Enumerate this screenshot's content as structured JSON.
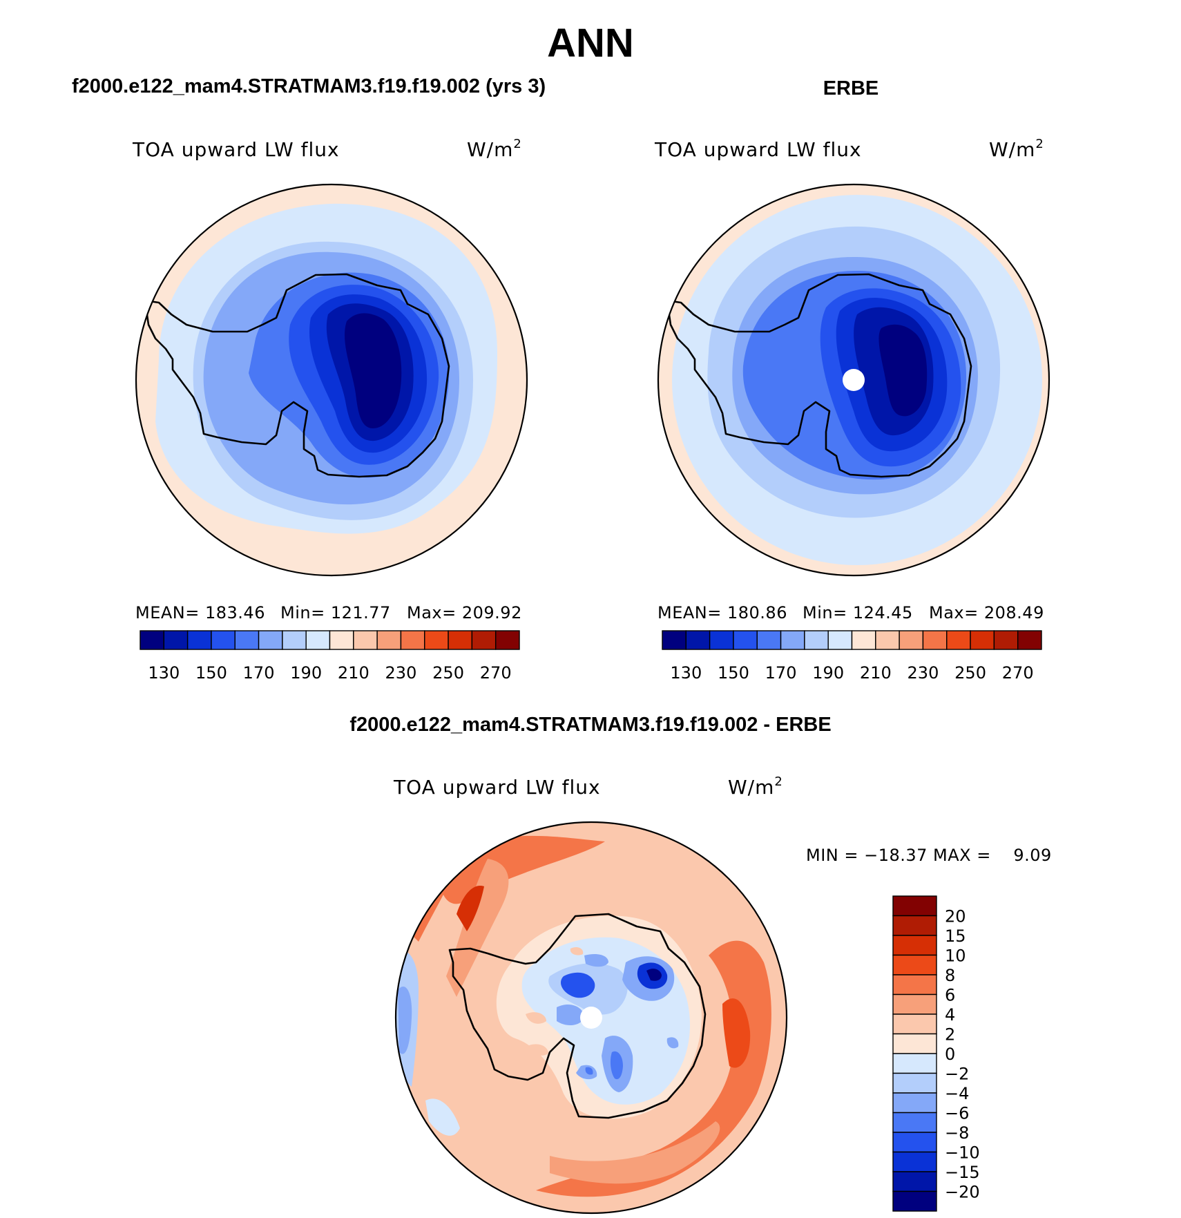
{
  "figure": {
    "season": "ANN",
    "units_suffix": "W/m",
    "units_power": "2"
  },
  "maps": [
    {
      "id": "model",
      "title": "f2000.e122_mam4.STRATMAM3.f19.f19.002 (yrs 3)",
      "field": "TOA upward LW flux",
      "mean_label": "MEAN= 183.46",
      "min_label": "Min= 121.77",
      "max_label": "Max= 209.92",
      "stats": {
        "mean": 183.46,
        "min": 121.77,
        "max": 209.92
      },
      "pole_hole": false
    },
    {
      "id": "obs",
      "title": "ERBE",
      "field": "TOA upward LW flux",
      "mean_label": "MEAN= 180.86",
      "min_label": "Min= 124.45",
      "max_label": "Max= 208.49",
      "stats": {
        "mean": 180.86,
        "min": 124.45,
        "max": 208.49
      },
      "pole_hole": true
    },
    {
      "id": "diff",
      "title": "f2000.e122_mam4.STRATMAM3.f19.f19.002 - ERBE",
      "field": "TOA upward LW flux",
      "minmax_label": "MIN = −18.37 MAX =    9.09",
      "stats": {
        "min": -18.37,
        "max": 9.09
      },
      "pole_hole": true
    }
  ],
  "colorbar_abs": {
    "levels": [
      130,
      140,
      150,
      160,
      170,
      180,
      190,
      200,
      210,
      220,
      230,
      240,
      250,
      260,
      270
    ],
    "tick_labels": [
      "130",
      "150",
      "170",
      "190",
      "210",
      "230",
      "250",
      "270"
    ],
    "colors": [
      "#00007f",
      "#0016a9",
      "#0a32d6",
      "#2452ee",
      "#4a78f5",
      "#84a8f8",
      "#b3cefb",
      "#d6e8fd",
      "#fde6d6",
      "#fbc8ad",
      "#f7a07a",
      "#f47548",
      "#ec4a18",
      "#d62f05",
      "#b01c04",
      "#820202"
    ]
  },
  "colorbar_diff": {
    "levels": [
      -20,
      -15,
      -10,
      -8,
      -6,
      -4,
      -2,
      0,
      2,
      4,
      6,
      8,
      10,
      15,
      20
    ],
    "tick_labels": [
      "20",
      "15",
      "10",
      "8",
      "6",
      "4",
      "2",
      "0",
      "−2",
      "−4",
      "−6",
      "−8",
      "−10",
      "−15",
      "−20"
    ],
    "colors": [
      "#820202",
      "#b01c04",
      "#d62f05",
      "#ec4a18",
      "#f47548",
      "#f7a07a",
      "#fbc8ad",
      "#fde6d6",
      "#d6e8fd",
      "#b3cefb",
      "#84a8f8",
      "#4a78f5",
      "#2452ee",
      "#0a32d6",
      "#0016a9",
      "#00007f"
    ]
  }
}
